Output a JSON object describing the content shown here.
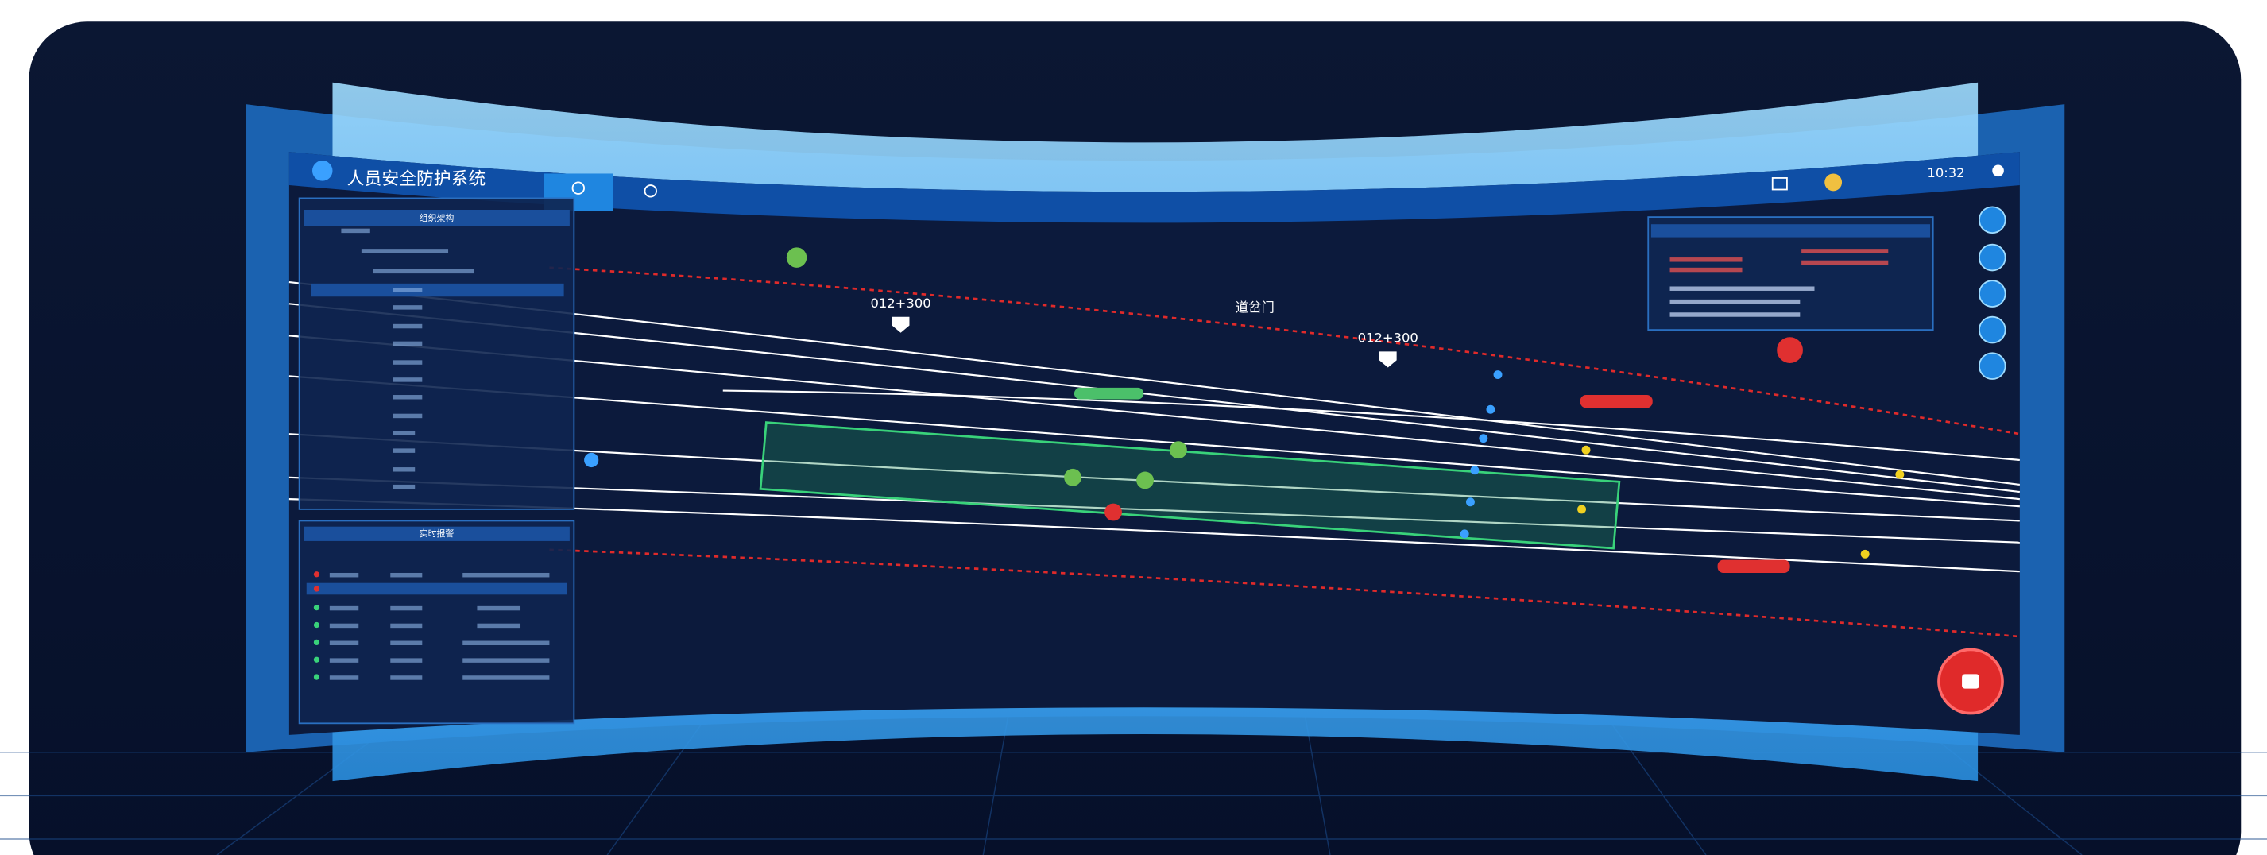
{
  "header": {
    "title": "人员安全防护系统",
    "time": "10:32"
  },
  "panels": {
    "tree_title": "组织架构",
    "alarm_title": "实时报警"
  },
  "map": {
    "markers": [
      "012+300",
      "012+300"
    ],
    "gate": "道岔门"
  }
}
